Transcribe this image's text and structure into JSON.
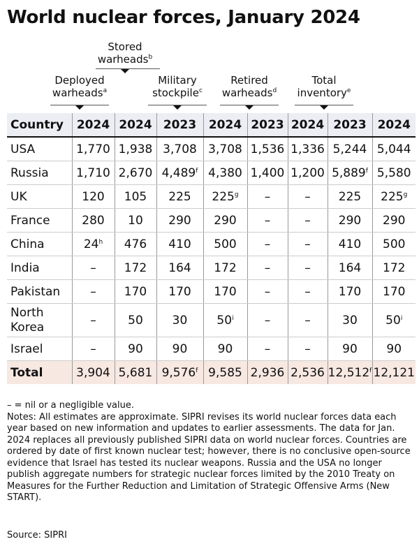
{
  "title": "World nuclear forces, January 2024",
  "chart_data": {
    "type": "table",
    "title": "World nuclear forces, January 2024",
    "column_groups": [
      {
        "label": "Deployed warheads",
        "note": "a"
      },
      {
        "label": "Stored warheads",
        "note": "b"
      },
      {
        "label": "Military stockpile",
        "note": "c"
      },
      {
        "label": "Retired warheads",
        "note": "d"
      },
      {
        "label": "Total inventory",
        "note": "e"
      }
    ],
    "header": [
      "Country",
      "2024",
      "2024",
      "2023",
      "2024",
      "2023",
      "2024",
      "2023",
      "2024"
    ],
    "rows": [
      {
        "country": "USA",
        "cells": [
          [
            "1,770"
          ],
          [
            "1,938"
          ],
          [
            "3,708"
          ],
          [
            "3,708"
          ],
          [
            "1,536"
          ],
          [
            "1,336"
          ],
          [
            "5,244"
          ],
          [
            "5,044"
          ]
        ]
      },
      {
        "country": "Russia",
        "cells": [
          [
            "1,710"
          ],
          [
            "2,670"
          ],
          [
            "4,489",
            "f"
          ],
          [
            "4,380"
          ],
          [
            "1,400"
          ],
          [
            "1,200"
          ],
          [
            "5,889",
            "f"
          ],
          [
            "5,580"
          ]
        ]
      },
      {
        "country": "UK",
        "cells": [
          [
            "120"
          ],
          [
            "105"
          ],
          [
            "225"
          ],
          [
            "225",
            "g"
          ],
          [
            "–"
          ],
          [
            "–"
          ],
          [
            "225"
          ],
          [
            "225",
            "g"
          ]
        ]
      },
      {
        "country": "France",
        "cells": [
          [
            "280"
          ],
          [
            "10"
          ],
          [
            "290"
          ],
          [
            "290"
          ],
          [
            "–"
          ],
          [
            "–"
          ],
          [
            "290"
          ],
          [
            "290"
          ]
        ]
      },
      {
        "country": "China",
        "cells": [
          [
            "24",
            "h"
          ],
          [
            "476"
          ],
          [
            "410"
          ],
          [
            "500"
          ],
          [
            "–"
          ],
          [
            "–"
          ],
          [
            "410"
          ],
          [
            "500"
          ]
        ]
      },
      {
        "country": "India",
        "cells": [
          [
            "–"
          ],
          [
            "172"
          ],
          [
            "164"
          ],
          [
            "172"
          ],
          [
            "–"
          ],
          [
            "–"
          ],
          [
            "164"
          ],
          [
            "172"
          ]
        ]
      },
      {
        "country": "Pakistan",
        "cells": [
          [
            "–"
          ],
          [
            "170"
          ],
          [
            "170"
          ],
          [
            "170"
          ],
          [
            "–"
          ],
          [
            "–"
          ],
          [
            "170"
          ],
          [
            "170"
          ]
        ]
      },
      {
        "country": "North Korea",
        "cells": [
          [
            "–"
          ],
          [
            "50"
          ],
          [
            "30"
          ],
          [
            "50",
            "i"
          ],
          [
            "–"
          ],
          [
            "–"
          ],
          [
            "30"
          ],
          [
            "50",
            "i"
          ]
        ]
      },
      {
        "country": "Israel",
        "cells": [
          [
            "–"
          ],
          [
            "90"
          ],
          [
            "90"
          ],
          [
            "90"
          ],
          [
            "–"
          ],
          [
            "–"
          ],
          [
            "90"
          ],
          [
            "90"
          ]
        ]
      }
    ],
    "total": {
      "country": "Total",
      "cells": [
        [
          "3,904"
        ],
        [
          "5,681"
        ],
        [
          "9,576",
          "f"
        ],
        [
          "9,585"
        ],
        [
          "2,936"
        ],
        [
          "2,536"
        ],
        [
          "12,512",
          "f"
        ],
        [
          "12,121"
        ]
      ]
    },
    "colors": {
      "header_bg": "#eceef4",
      "total_bg": "#f8e8e2"
    }
  },
  "legend_nil": "– = nil or a negligible value.",
  "notes": "Notes: All estimates are approximate. SIPRI revises its world nuclear forces data each year based on new information and updates to earlier assessments. The data for Jan. 2024 replaces all previously published SIPRI data on world nuclear forces. Countries are ordered by date of first known nuclear test; however, there is no conclusive open-source evidence that Israel has tested its nuclear weapons. Russia and the USA no longer publish aggregate numbers for strategic nuclear forces limited by the 2010 Treaty on Measures for the Further Reduction and Limitation of Strategic Offensive Arms (New START).",
  "source": "Source: SIPRI"
}
